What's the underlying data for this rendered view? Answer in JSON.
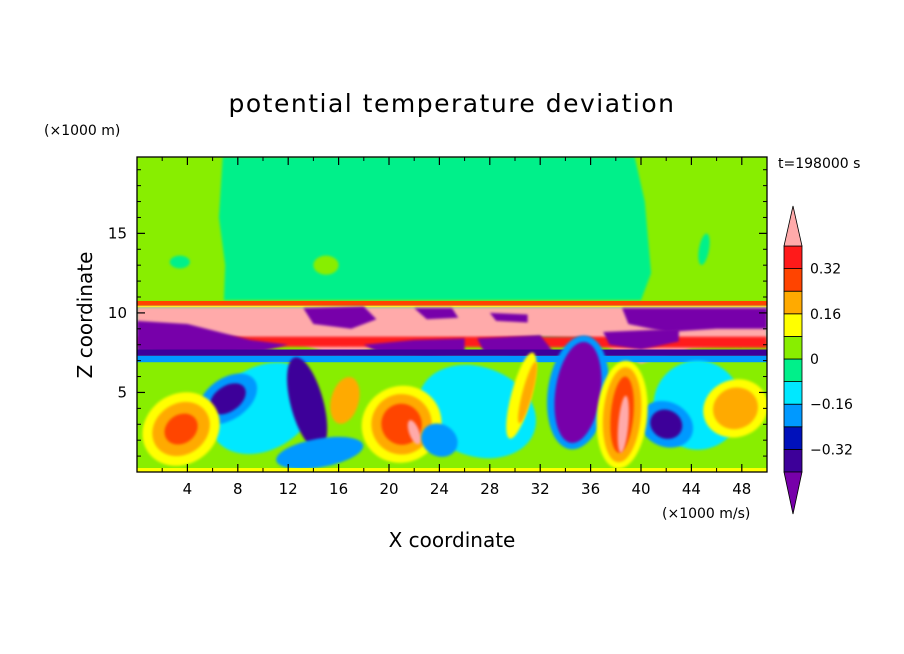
{
  "chart_data": {
    "type": "heatmap",
    "title": "potential temperature deviation",
    "time_label": "t=198000 s",
    "xlabel": "X coordinate",
    "ylabel": "Z coordinate",
    "x_unit": "(×1000 m/s)",
    "y_unit": "(×1000 m)",
    "xlim": [
      0,
      50
    ],
    "ylim": [
      0,
      19.8
    ],
    "x_ticks": [
      4,
      8,
      12,
      16,
      20,
      24,
      28,
      32,
      36,
      40,
      44,
      48
    ],
    "y_ticks": [
      5,
      10,
      15
    ],
    "colorbar": {
      "levels": [
        -0.4,
        -0.32,
        -0.24,
        -0.16,
        -0.08,
        0,
        0.08,
        0.16,
        0.24,
        0.32,
        0.4
      ],
      "tick_labels": [
        "0.32",
        "0.16",
        "0",
        "−0.16",
        "−0.32"
      ],
      "tick_values": [
        0.32,
        0.16,
        0,
        -0.16,
        -0.32
      ],
      "colors": [
        "#7700aa",
        "#3d0099",
        "#0011bb",
        "#0099ff",
        "#00e8ff",
        "#00f08a",
        "#88ee00",
        "#ffff00",
        "#ffaa00",
        "#ff4400",
        "#ff1a1a",
        "#ffaaaa"
      ]
    },
    "features": [
      {
        "name": "upper-layer-zero-band",
        "value_range": [
          -0.08,
          0.08
        ],
        "z": [
          10.6,
          19.8
        ]
      },
      {
        "name": "upper-layer-slightly-warm",
        "value_range": [
          0,
          0.08
        ],
        "x": [
          0,
          5.5
        ],
        "z": [
          10.6,
          19.8
        ]
      },
      {
        "name": "tropopause-warm-band",
        "value_range": [
          0.4,
          0.5
        ],
        "x": [
          0,
          50
        ],
        "z": [
          8,
          10.4
        ]
      },
      {
        "name": "cold-pool-west",
        "value_range": [
          -0.5,
          -0.32
        ],
        "x": [
          -0.3,
          4
        ],
        "z": [
          7.4,
          9.7
        ]
      },
      {
        "name": "cold-patch-upper",
        "value_range": [
          -0.5,
          -0.32
        ],
        "x": [
          13,
          18
        ],
        "z": [
          9.0,
          10.5
        ]
      },
      {
        "name": "cold-patch-east",
        "value_range": [
          -0.5,
          -0.32
        ],
        "x": [
          38,
          50
        ],
        "z": [
          8.8,
          10.4
        ]
      },
      {
        "name": "cold-column",
        "value_range": [
          -0.5,
          -0.32
        ],
        "x": [
          33,
          37
        ],
        "z": [
          2,
          8
        ]
      },
      {
        "name": "warm-plume",
        "value_range": [
          0.32,
          0.5
        ],
        "x": [
          19,
          23
        ],
        "z": [
          1,
          5
        ]
      },
      {
        "name": "warm-plume",
        "value_range": [
          0.32,
          0.5
        ],
        "x": [
          37,
          40
        ],
        "z": [
          1,
          6
        ]
      },
      {
        "name": "warm-plume",
        "value_range": [
          0.16,
          0.32
        ],
        "x": [
          1,
          6
        ],
        "z": [
          0.5,
          5.5
        ]
      },
      {
        "name": "warm-plume",
        "value_range": [
          0.16,
          0.32
        ],
        "x": [
          45,
          50
        ],
        "z": [
          2,
          6
        ]
      },
      {
        "name": "cold-plume",
        "value_range": [
          -0.32,
          -0.16
        ],
        "x": [
          5,
          9
        ],
        "z": [
          3,
          6
        ]
      },
      {
        "name": "cold-plume",
        "value_range": [
          -0.32,
          -0.16
        ],
        "x": [
          40,
          44
        ],
        "z": [
          1.5,
          4.5
        ]
      }
    ]
  }
}
